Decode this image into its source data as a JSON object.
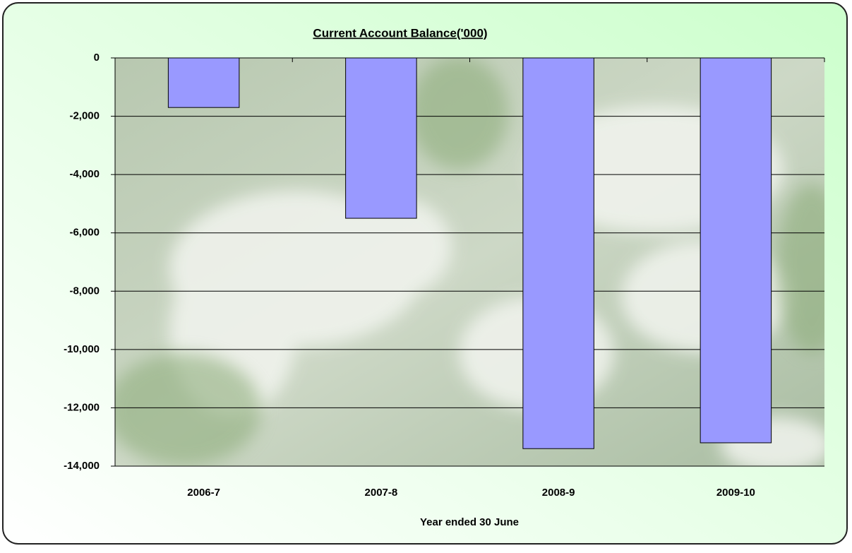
{
  "chart_data": {
    "type": "bar",
    "title": "Current Account  Balance('000)",
    "x_label": "Year ended 30 June",
    "categories": [
      "2006-7",
      "2007-8",
      "2008-9",
      "2009-10"
    ],
    "values": [
      -1700,
      -5500,
      -13400,
      -13200
    ],
    "color": "#9999ff",
    "ylim": [
      -14000,
      0
    ],
    "yticks": [
      {
        "value": -14000,
        "label": "-14,000"
      },
      {
        "value": -12000,
        "label": "-12,000"
      },
      {
        "value": -10000,
        "label": "-10,000"
      },
      {
        "value": -8000,
        "label": "-8,000"
      },
      {
        "value": -6000,
        "label": "-6,000"
      },
      {
        "value": -4000,
        "label": "-4,000"
      },
      {
        "value": -2000,
        "label": "-2,000"
      },
      0
    ],
    "grid": true
  }
}
